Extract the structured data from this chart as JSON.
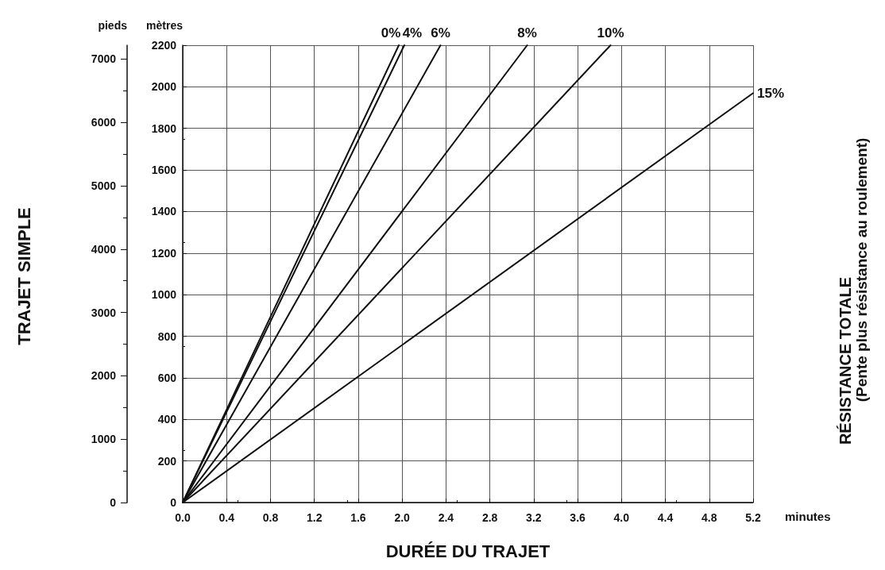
{
  "chart_data": {
    "type": "line",
    "xlabel": "DURÉE DU TRAJET",
    "ylabel": "mètres",
    "y2label": "pieds",
    "legend_title": "RÉSISTANCE TOTALE",
    "annotations": [
      "(Pente plus résistance au roulement)",
      "TRAJET SIMPLE",
      "minutes"
    ],
    "series": [
      {
        "name": "0%",
        "color": "#111111",
        "x": [
          0,
          1.97
        ],
        "values": [
          0,
          2200
        ]
      },
      {
        "name": "4%",
        "color": "#111111",
        "x": [
          0,
          2.02
        ],
        "values": [
          0,
          2200
        ]
      },
      {
        "name": "6%",
        "color": "#111111",
        "x": [
          0,
          2.35
        ],
        "values": [
          0,
          2200
        ]
      },
      {
        "name": "8%",
        "color": "#111111",
        "x": [
          0,
          3.14
        ],
        "values": [
          0,
          2200
        ]
      },
      {
        "name": "10%",
        "color": "#111111",
        "x": [
          0,
          3.9
        ],
        "values": [
          0,
          2200
        ]
      },
      {
        "name": "15%",
        "color": "#111111",
        "x": [
          0,
          5.2
        ],
        "values": [
          0,
          1970
        ]
      }
    ],
    "xlim": [
      0,
      5.2
    ],
    "xticks": [
      {
        "value": 0,
        "label": "0.0"
      },
      0.4,
      0.8,
      1.2,
      1.6,
      {
        "value": 2,
        "label": "2.0"
      },
      2.4,
      2.8,
      3.2,
      3.6,
      {
        "value": 4,
        "label": "4.0"
      },
      4.4,
      4.8,
      5.2
    ],
    "ylim": [
      0,
      2200
    ],
    "yticks": [
      0,
      200,
      400,
      600,
      800,
      1000,
      1200,
      1400,
      1600,
      1800,
      2000,
      2200
    ],
    "y2lim": [
      0,
      7218
    ],
    "y2ticks": [
      0,
      1000,
      2000,
      3000,
      4000,
      5000,
      6000,
      7000
    ],
    "grid": true,
    "legend": false,
    "line_style": "solid"
  }
}
